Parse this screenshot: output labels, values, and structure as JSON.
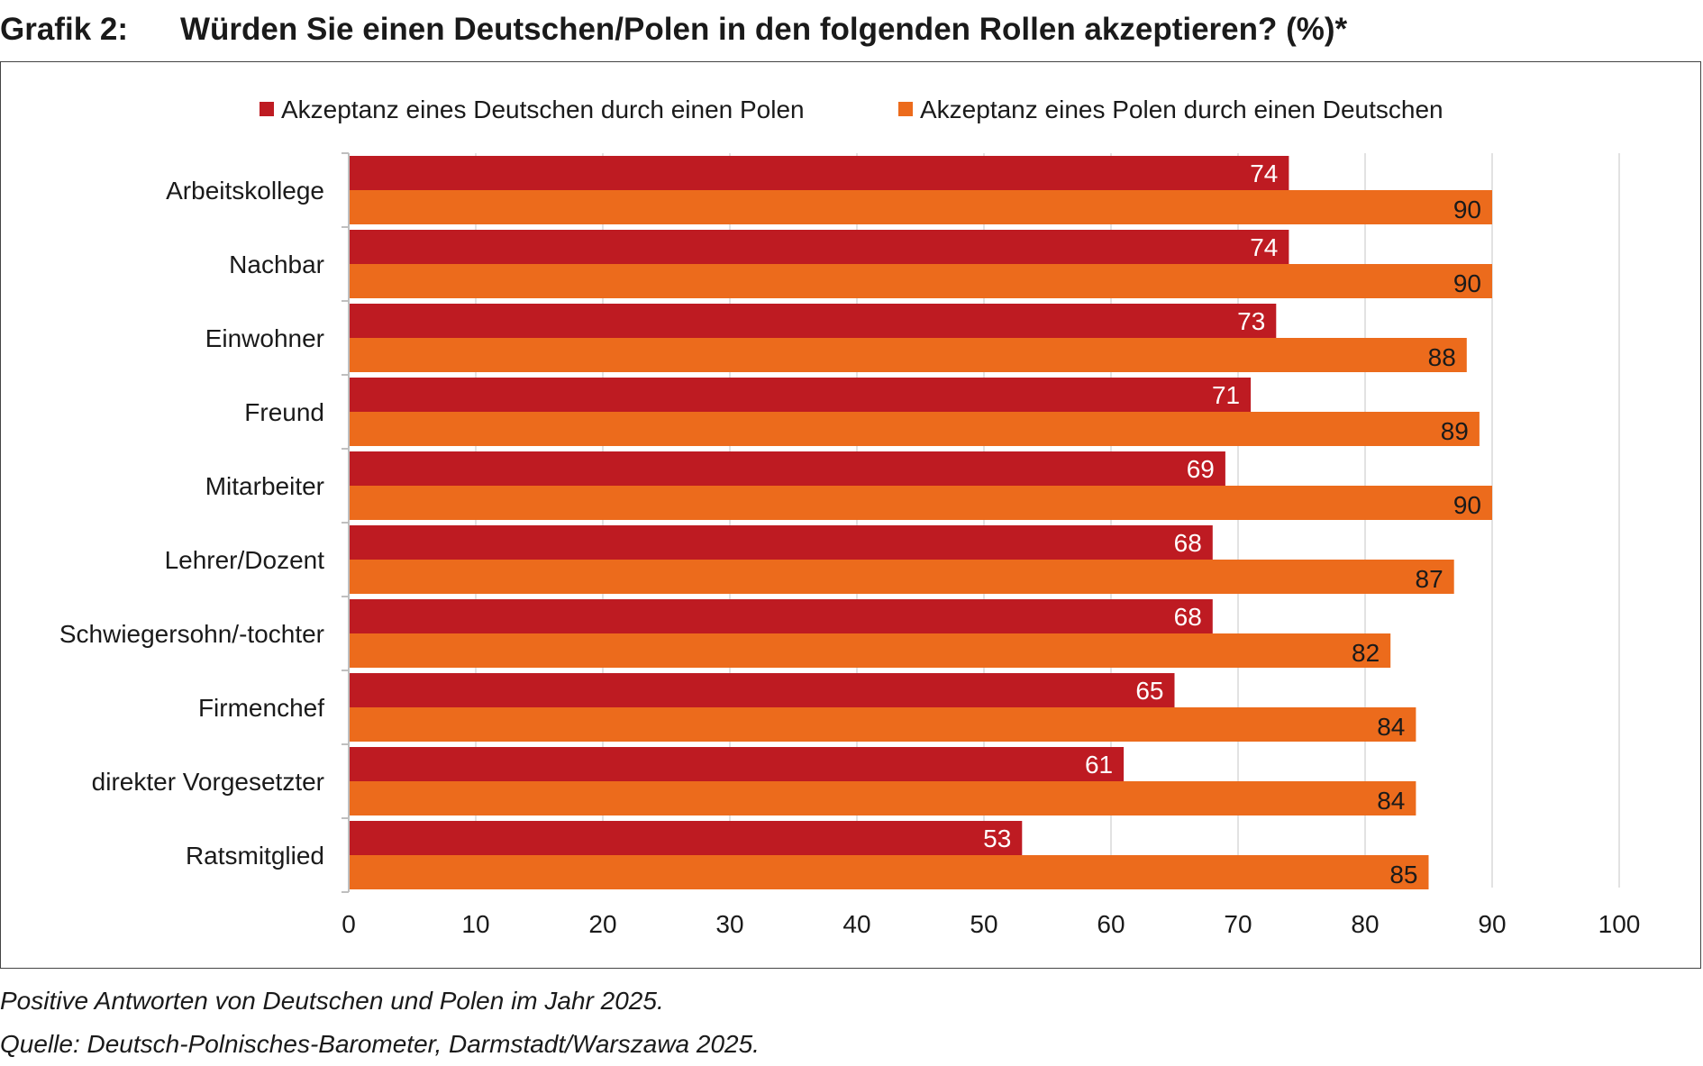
{
  "header": {
    "prefix": "Grafik 2:",
    "title": "Würden Sie einen Deutschen/Polen in den folgenden Rollen akzeptieren? (%)*"
  },
  "footer": {
    "note": "Positive Antworten von Deutschen und Polen im Jahr 2025.",
    "source": "Quelle: Deutsch-Polnisches-Barometer, Darmstadt/Warszawa 2025."
  },
  "colors": {
    "series1": "#BE1B22",
    "series2": "#EC6B1C",
    "grid": "#D9D9D9"
  },
  "chart_data": {
    "type": "bar",
    "orientation": "horizontal",
    "categories": [
      "Arbeitskollege",
      "Nachbar",
      "Einwohner",
      "Freund",
      "Mitarbeiter",
      "Lehrer/Dozent",
      "Schwiegersohn/-tochter",
      "Firmenchef",
      "direkter Vorgesetzter",
      "Ratsmitglied"
    ],
    "series": [
      {
        "name": "Akzeptanz eines Deutschen durch einen Polen",
        "values": [
          74,
          74,
          73,
          71,
          69,
          68,
          68,
          65,
          61,
          53
        ]
      },
      {
        "name": "Akzeptanz eines Polen durch einen Deutschen",
        "values": [
          90,
          90,
          88,
          89,
          90,
          87,
          82,
          84,
          84,
          85
        ]
      }
    ],
    "xlim": [
      0,
      100
    ],
    "xticks": [
      0,
      10,
      20,
      30,
      40,
      50,
      60,
      70,
      80,
      90,
      100
    ],
    "grid": true,
    "legend": "top",
    "data_labels": true
  }
}
